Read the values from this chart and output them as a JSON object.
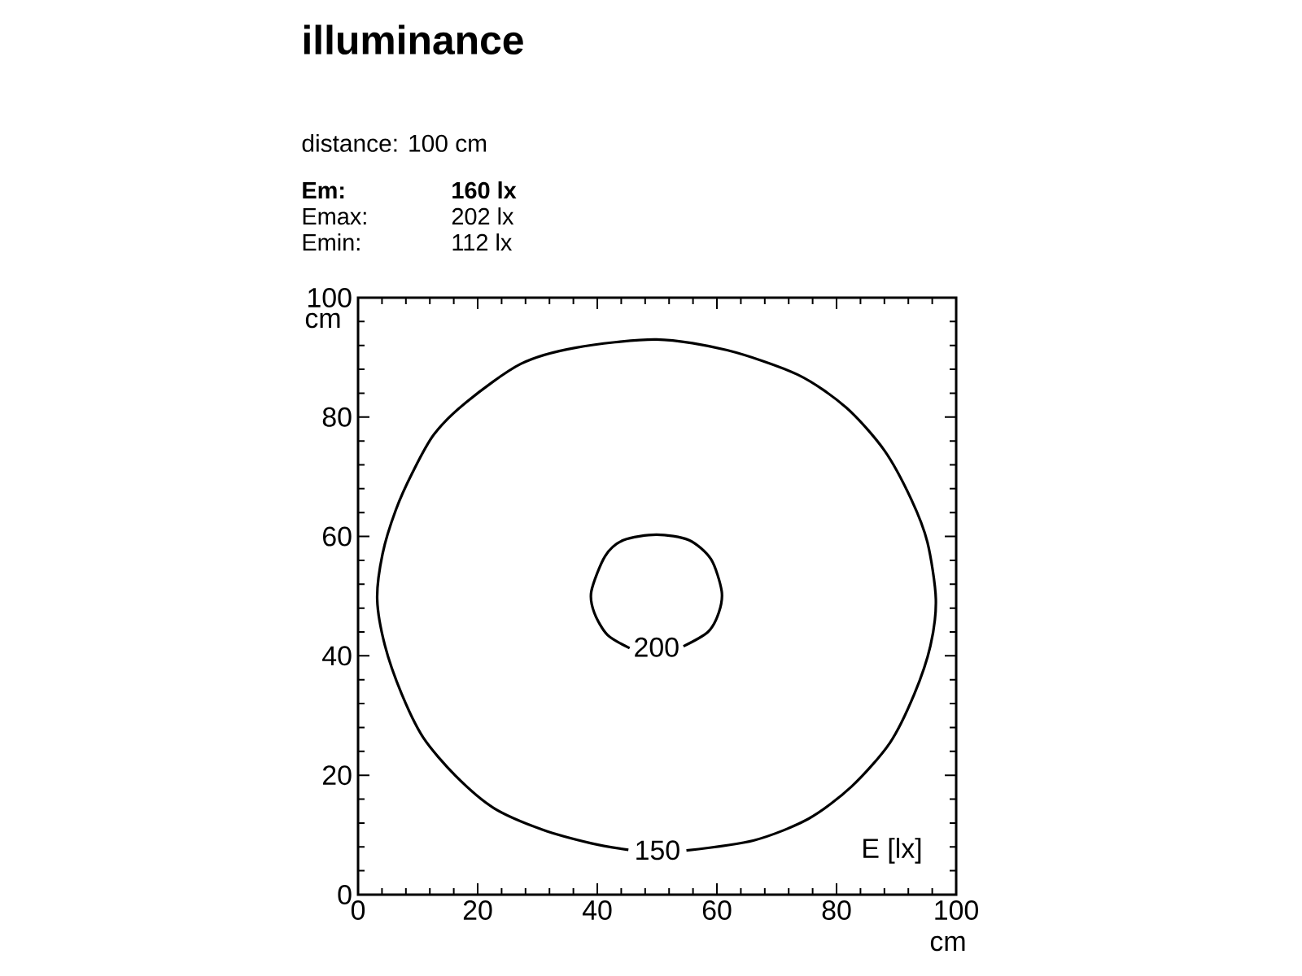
{
  "chart_data": {
    "type": "line",
    "title": "illuminance",
    "subtitle": "distance: 100 cm",
    "xlabel": "cm",
    "ylabel": "cm",
    "annotations": [
      "Em:",
      "160 lx",
      "Emax:",
      "202 lx",
      "Emin:",
      "112 lx",
      "E [lx]"
    ],
    "series": [
      {
        "name": "150",
        "color": "#000000",
        "x": [
          54.9,
          66.2,
          75.3,
          82.5,
          88.9,
          93.0,
          95.7,
          96.6,
          95.2,
          92.5,
          88.0,
          81.6,
          73.5,
          61.7,
          49.9,
          36.3,
          27.2,
          18.1,
          12.7,
          9.1,
          6.3,
          4.1,
          3.2,
          4.5,
          7.3,
          10.9,
          16.3,
          22.7,
          30.8,
          39.0,
          45.2
        ],
        "values": [
          7.4,
          9.1,
          12.7,
          18.1,
          25.4,
          33.6,
          41.7,
          49.5,
          59.0,
          66.2,
          74.4,
          81.6,
          87.1,
          91.2,
          93.0,
          91.6,
          88.9,
          82.5,
          77.1,
          70.7,
          64.4,
          57.1,
          49.5,
          41.7,
          33.6,
          26.3,
          19.9,
          14.5,
          10.9,
          8.6,
          7.5
        ]
      },
      {
        "name": "200",
        "color": "#000000",
        "x": [
          54.4,
          58.5,
          60.3,
          60.8,
          59.0,
          55.3,
          49.9,
          44.4,
          41.3,
          39.0,
          39.5,
          41.7,
          45.4
        ],
        "values": [
          41.6,
          44.0,
          47.2,
          50.8,
          56.2,
          59.4,
          60.3,
          59.4,
          56.7,
          50.8,
          47.2,
          43.5,
          41.3
        ]
      }
    ],
    "xlim": [
      0,
      100
    ],
    "ylim": [
      0,
      100
    ],
    "xticks": [
      0,
      20,
      40,
      60,
      80,
      100
    ],
    "yticks": [
      0,
      20,
      40,
      60,
      80,
      100
    ],
    "line_style": "solid"
  }
}
